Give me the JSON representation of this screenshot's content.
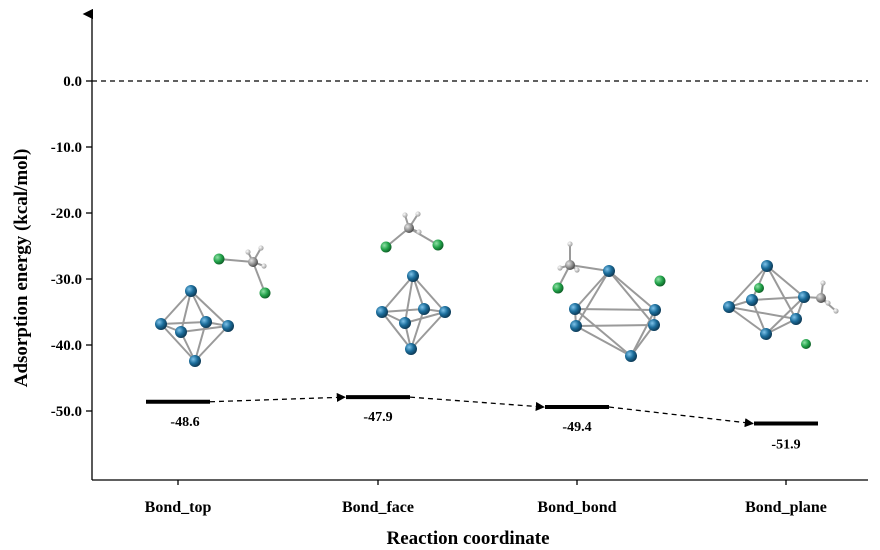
{
  "chart_data": {
    "type": "line",
    "subtype": "energy-level diagram",
    "categories": [
      "Bond_top",
      "Bond_face",
      "Bond_bond",
      "Bond_plane"
    ],
    "values": [
      -48.6,
      -47.9,
      -49.4,
      -51.9
    ],
    "data_labels": [
      "-48.6",
      "-47.9",
      "-49.4",
      "-51.9"
    ],
    "xlabel": "Reaction coordinate",
    "ylabel": "Adsorption energy  (kcal/mol)",
    "yticks": [
      0.0,
      -10.0,
      -20.0,
      -30.0,
      -40.0,
      -50.0
    ],
    "ytick_labels": [
      "0.0",
      "-10.0",
      "-20.0",
      "-30.0",
      "-40.0",
      "-50.0"
    ],
    "ylim": [
      -60,
      10
    ],
    "reference_line": {
      "y": 0.0,
      "style": "dashed"
    },
    "connector_style": "dashed-arrow",
    "grid": false,
    "colors": {
      "level": "#000000",
      "cluster_atom": "#1c6e9c",
      "halogen_atom": "#22a24a",
      "carbon_atom": "#8a8a8a",
      "hydrogen_atom": "#e0e0e0"
    }
  }
}
